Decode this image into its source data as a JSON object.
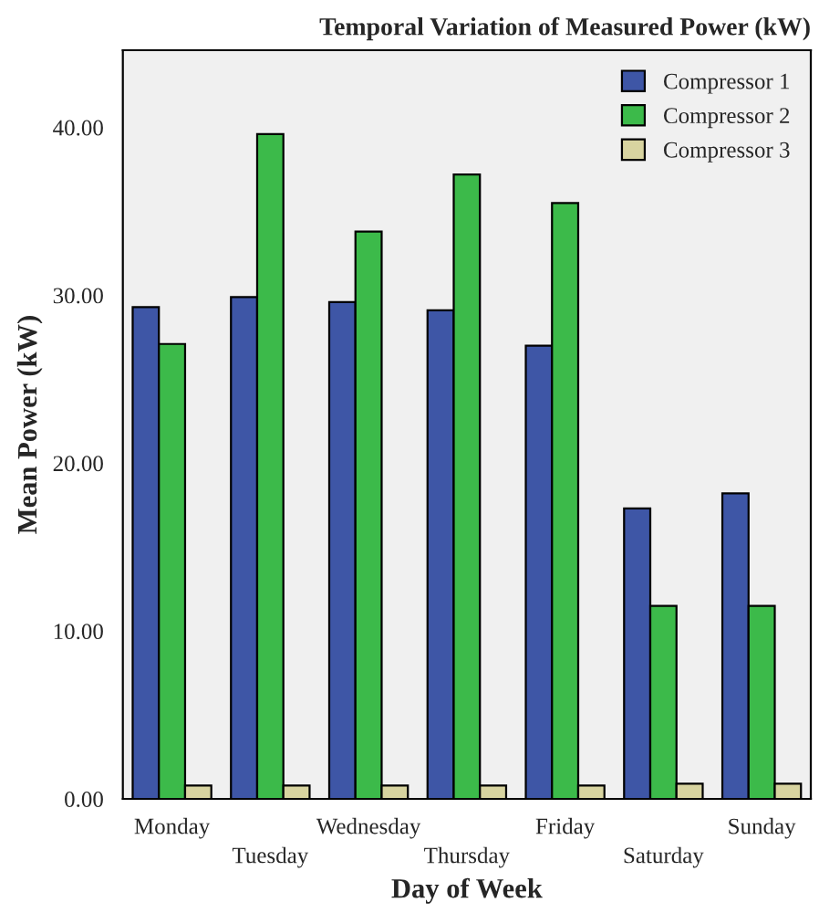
{
  "chart_data": {
    "type": "bar",
    "title": "Temporal Variation of Measured Power (kW)",
    "xlabel": "Day of Week",
    "ylabel": "Mean Power (kW)",
    "categories": [
      "Monday",
      "Tuesday",
      "Wednesday",
      "Thursday",
      "Friday",
      "Saturday",
      "Sunday"
    ],
    "series": [
      {
        "name": "Compressor 1",
        "color": "#3e56a6",
        "values": [
          29.3,
          29.9,
          29.6,
          29.1,
          27.0,
          17.3,
          18.2
        ]
      },
      {
        "name": "Compressor 2",
        "color": "#3cba4a",
        "values": [
          27.1,
          39.6,
          33.8,
          37.2,
          35.5,
          11.5,
          11.5
        ]
      },
      {
        "name": "Compressor 3",
        "color": "#d8d4a0",
        "values": [
          0.8,
          0.8,
          0.8,
          0.8,
          0.8,
          0.9,
          0.9
        ]
      }
    ],
    "ylim": [
      0,
      44.6
    ],
    "yticks": [
      {
        "value": 0,
        "label": "0.00"
      },
      {
        "value": 10,
        "label": "10.00"
      },
      {
        "value": 20,
        "label": "20.00"
      },
      {
        "value": 30,
        "label": "30.00"
      },
      {
        "value": 40,
        "label": "40.00"
      }
    ],
    "grid": false,
    "legend": "top right"
  }
}
